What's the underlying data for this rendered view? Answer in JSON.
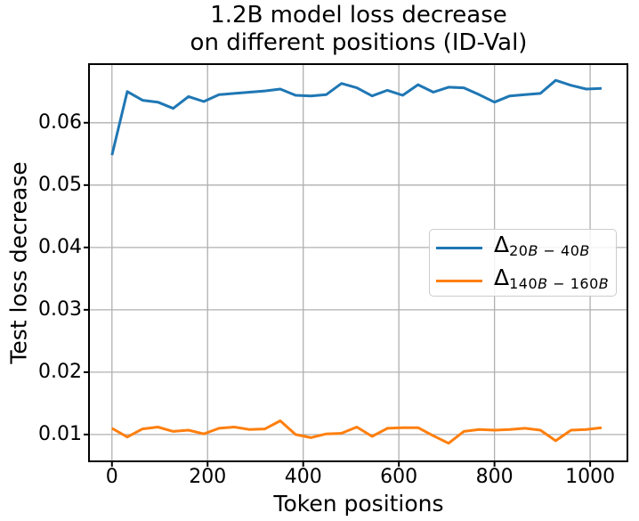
{
  "figure": {
    "title_line1": "1.2B model loss decrease",
    "title_line2": "on different positions (ID-Val)"
  },
  "chart_data": {
    "type": "line",
    "title": "1.2B model loss decrease on different positions (ID-Val)",
    "xlabel": "Token positions",
    "ylabel": "Test loss decrease",
    "xlim": [
      -48,
      1078
    ],
    "ylim": [
      0.0057,
      0.0694
    ],
    "grid": true,
    "grid_color": "#b0b0b0",
    "legend_position": "center right",
    "xticks": {
      "values": [
        0,
        200,
        400,
        600,
        800,
        1000
      ],
      "labels": [
        "0",
        "200",
        "400",
        "600",
        "800",
        "1000"
      ]
    },
    "yticks": {
      "values": [
        0.01,
        0.02,
        0.03,
        0.04,
        0.05,
        0.06
      ],
      "labels": [
        "0.01",
        "0.02",
        "0.03",
        "0.04",
        "0.05",
        "0.06"
      ]
    },
    "x": [
      0,
      32,
      64,
      96,
      128,
      160,
      192,
      224,
      256,
      288,
      320,
      352,
      384,
      416,
      448,
      480,
      512,
      544,
      576,
      608,
      640,
      672,
      704,
      736,
      768,
      800,
      832,
      864,
      896,
      928,
      960,
      992,
      1024
    ],
    "series": [
      {
        "name": "delta-20B-40B",
        "label_symbol": "Δ",
        "label_subscript": "20B − 40B",
        "color": "#1f77b4",
        "values": [
          0.0548,
          0.065,
          0.0636,
          0.0633,
          0.0623,
          0.0642,
          0.0634,
          0.0645,
          0.0647,
          0.0649,
          0.0651,
          0.0654,
          0.0644,
          0.0643,
          0.0645,
          0.0663,
          0.0656,
          0.0643,
          0.0652,
          0.0644,
          0.0661,
          0.0649,
          0.0657,
          0.0656,
          0.0645,
          0.0633,
          0.0643,
          0.0645,
          0.0647,
          0.0668,
          0.066,
          0.0654,
          0.0655
        ]
      },
      {
        "name": "delta-140B-160B",
        "label_symbol": "Δ",
        "label_subscript": "140B − 160B",
        "color": "#ff7f0e",
        "values": [
          0.011,
          0.0096,
          0.0109,
          0.0112,
          0.0105,
          0.0107,
          0.0101,
          0.011,
          0.0112,
          0.0108,
          0.0109,
          0.0122,
          0.01,
          0.0095,
          0.0101,
          0.0102,
          0.0112,
          0.0097,
          0.011,
          0.0111,
          0.0111,
          0.0098,
          0.0086,
          0.0105,
          0.0108,
          0.0107,
          0.0108,
          0.011,
          0.0107,
          0.009,
          0.0107,
          0.0108,
          0.0111
        ]
      }
    ]
  },
  "colors": {
    "spine": "#000000",
    "tick": "#000000",
    "legend_border": "#cccccc"
  }
}
